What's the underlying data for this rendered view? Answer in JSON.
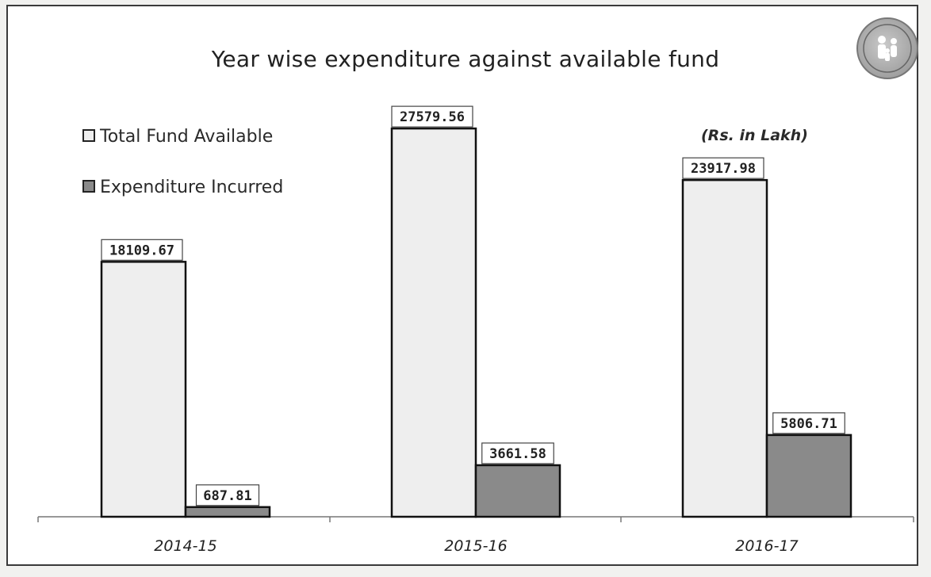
{
  "chart_data": {
    "type": "bar",
    "title": "Year wise expenditure against available fund",
    "unit_note": "(Rs. in Lakh)",
    "categories": [
      "2014-15",
      "2015-16",
      "2016-17"
    ],
    "series": [
      {
        "name": "Total Fund Available",
        "values": [
          18109.67,
          27579.56,
          23917.98
        ],
        "labels": [
          "18109.67",
          "27579.56",
          "23917.98"
        ],
        "color": "#eeeeee"
      },
      {
        "name": "Expenditure Incurred",
        "values": [
          687.81,
          3661.58,
          5806.71
        ],
        "labels": [
          "687.81",
          "3661.58",
          "5806.71"
        ],
        "color": "#8a8a8a"
      }
    ],
    "ylim": [
      0,
      29500
    ],
    "grid": false,
    "legend_position": "top-left",
    "data_labels": true
  },
  "logo": {
    "icon": "national-urban-health-mission-logo-icon"
  }
}
